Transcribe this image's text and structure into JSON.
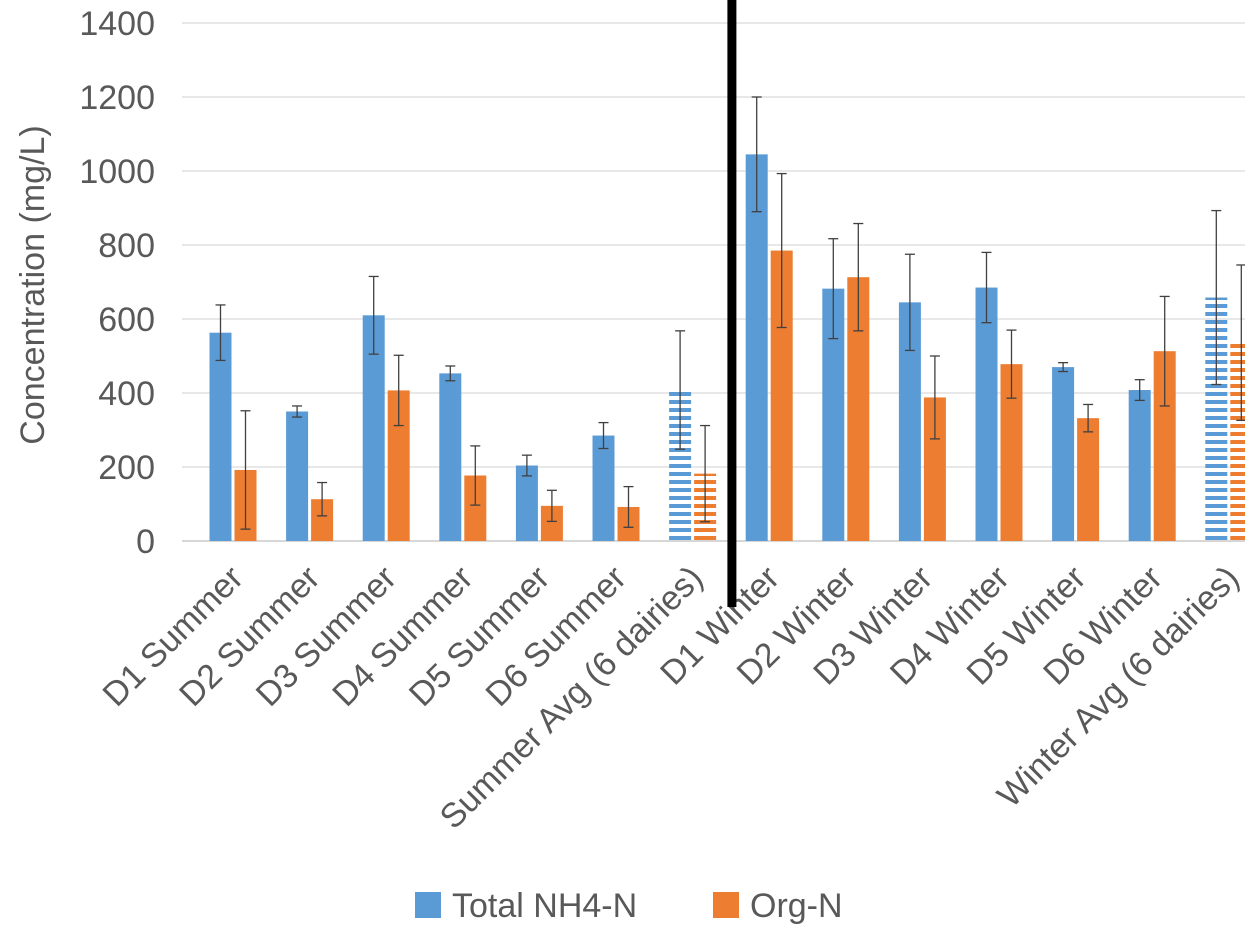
{
  "chart_data": {
    "type": "bar",
    "ylabel": "Concentration (mg/L)",
    "xlabel": "",
    "ylim": [
      0,
      1400
    ],
    "yticks": [
      0,
      200,
      400,
      600,
      800,
      1000,
      1200,
      1400
    ],
    "grid": true,
    "legend_position": "bottom",
    "categories": [
      "D1 Summer",
      "D2 Summer",
      "D3 Summer",
      "D4 Summer",
      "D5 Summer",
      "D6 Summer",
      "Summer Avg (6 dairies)",
      "D1 Winter",
      "D2 Winter",
      "D3 Winter",
      "D4 Winter",
      "D5 Winter",
      "D6 Winter",
      "Winter Avg (6 dairies)"
    ],
    "hatched_categories": [
      "Summer Avg (6 dairies)",
      "Winter Avg (6 dairies)"
    ],
    "divider_between": [
      "Summer Avg (6 dairies)",
      "D1 Winter"
    ],
    "series": [
      {
        "name": "Total NH4-N",
        "color": "#5b9bd5",
        "values": [
          563,
          350,
          610,
          453,
          204,
          285,
          408,
          1045,
          682,
          645,
          685,
          470,
          408,
          658
        ],
        "error": [
          75,
          15,
          105,
          20,
          28,
          35,
          160,
          155,
          135,
          130,
          95,
          12,
          28,
          235
        ]
      },
      {
        "name": "Org-N",
        "color": "#ed7d31",
        "values": [
          192,
          113,
          407,
          177,
          95,
          92,
          182,
          785,
          713,
          388,
          478,
          332,
          513,
          536
        ],
        "error": [
          160,
          45,
          95,
          80,
          42,
          55,
          130,
          208,
          145,
          112,
          92,
          37,
          148,
          210
        ]
      }
    ]
  }
}
